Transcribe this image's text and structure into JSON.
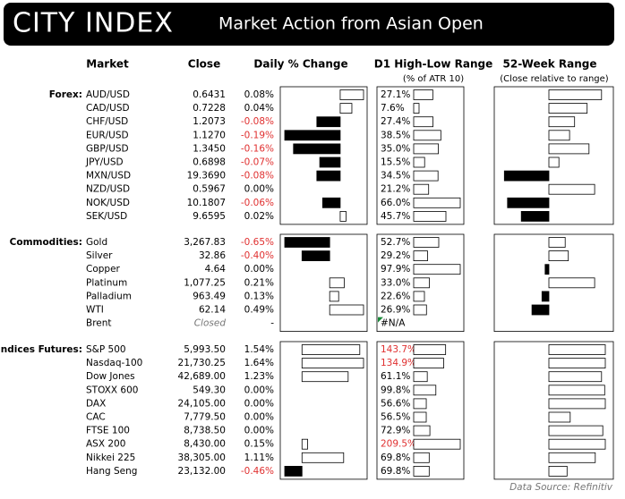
{
  "header": {
    "logo": "CITY INDEX",
    "title": "Market Action from Asian Open"
  },
  "columns": {
    "market": "Market",
    "close": "Close",
    "change": "Daily % Change",
    "range": "D1 High-Low Range",
    "range_note": "(% of ATR 10)",
    "week52": "52-Week Range",
    "week52_note": "(Close relative to range)"
  },
  "sections": [
    {
      "label": "Forex:",
      "rows": [
        {
          "market": "AUD/USD",
          "close": "0.6431",
          "change": {
            "value": 0.08,
            "label": "0.08%"
          },
          "range": {
            "value": 27.1,
            "label": "27.1%"
          },
          "week52": 84
        },
        {
          "market": "CAD/USD",
          "close": "0.7228",
          "change": {
            "value": 0.04,
            "label": "0.04%"
          },
          "range": {
            "value": 7.6,
            "label": "7.6%"
          },
          "week52": 61
        },
        {
          "market": "CHF/USD",
          "close": "1.2073",
          "change": {
            "value": -0.08,
            "label": "-0.08%"
          },
          "range": {
            "value": 27.4,
            "label": "27.4%"
          },
          "week52": 41
        },
        {
          "market": "EUR/USD",
          "close": "1.1270",
          "change": {
            "value": -0.19,
            "label": "-0.19%"
          },
          "range": {
            "value": 38.5,
            "label": "38.5%"
          },
          "week52": 33
        },
        {
          "market": "GBP/USD",
          "close": "1.3450",
          "change": {
            "value": -0.16,
            "label": "-0.16%"
          },
          "range": {
            "value": 35.0,
            "label": "35.0%"
          },
          "week52": 64
        },
        {
          "market": "JPY/USD",
          "close": "0.6898",
          "change": {
            "value": -0.07,
            "label": "-0.07%"
          },
          "range": {
            "value": 15.5,
            "label": "15.5%"
          },
          "week52": 16
        },
        {
          "market": "MXN/USD",
          "close": "19.3690",
          "change": {
            "value": -0.08,
            "label": "-0.08%"
          },
          "range": {
            "value": 34.5,
            "label": "34.5%"
          },
          "week52": -71
        },
        {
          "market": "NZD/USD",
          "close": "0.5967",
          "change": {
            "value": 0.0,
            "label": "0.00%"
          },
          "range": {
            "value": 21.2,
            "label": "21.2%"
          },
          "week52": 73
        },
        {
          "market": "NOK/USD",
          "close": "10.1807",
          "change": {
            "value": -0.06,
            "label": "-0.06%"
          },
          "range": {
            "value": 66.0,
            "label": "66.0%"
          },
          "week52": -66
        },
        {
          "market": "SEK/USD",
          "close": "9.6595",
          "change": {
            "value": 0.02,
            "label": "0.02%"
          },
          "range": {
            "value": 45.7,
            "label": "45.7%"
          },
          "week52": -44
        }
      ]
    },
    {
      "label": "Commodities:",
      "rows": [
        {
          "market": "Gold",
          "close": "3,267.83",
          "change": {
            "value": -0.65,
            "label": "-0.65%"
          },
          "range": {
            "value": 52.7,
            "label": "52.7%"
          },
          "week52": 26
        },
        {
          "market": "Silver",
          "close": "32.86",
          "change": {
            "value": -0.4,
            "label": "-0.40%"
          },
          "range": {
            "value": 29.2,
            "label": "29.2%"
          },
          "week52": 31
        },
        {
          "market": "Copper",
          "close": "4.64",
          "change": {
            "value": 0.0,
            "label": "0.00%"
          },
          "range": {
            "value": 97.9,
            "label": "97.9%"
          },
          "week52": -6
        },
        {
          "market": "Platinum",
          "close": "1,077.25",
          "change": {
            "value": 0.21,
            "label": "0.21%"
          },
          "range": {
            "value": 33.0,
            "label": "33.0%"
          },
          "week52": 73
        },
        {
          "market": "Palladium",
          "close": "963.49",
          "change": {
            "value": 0.13,
            "label": "0.13%"
          },
          "range": {
            "value": 22.6,
            "label": "22.6%"
          },
          "week52": -11
        },
        {
          "market": "WTI",
          "close": "62.14",
          "change": {
            "value": 0.49,
            "label": "0.49%"
          },
          "range": {
            "value": 26.9,
            "label": "26.9%"
          },
          "week52": -27
        },
        {
          "market": "Brent",
          "close": "Closed",
          "change": "-",
          "range": "#N/A",
          "week52": null
        }
      ]
    },
    {
      "label": "Indices Futures:",
      "rows": [
        {
          "market": "S&P 500",
          "close": "5,993.50",
          "change": {
            "value": 1.54,
            "label": "1.54%"
          },
          "range": {
            "value": 143.7,
            "label": "143.7%"
          },
          "week52": 90
        },
        {
          "market": "Nasdaq-100",
          "close": "21,730.25",
          "change": {
            "value": 1.64,
            "label": "1.64%"
          },
          "range": {
            "value": 134.9,
            "label": "134.9%"
          },
          "week52": 90
        },
        {
          "market": "Dow Jones",
          "close": "42,689.00",
          "change": {
            "value": 1.23,
            "label": "1.23%"
          },
          "range": {
            "value": 61.1,
            "label": "61.1%"
          },
          "week52": 84
        },
        {
          "market": "STOXX 600",
          "close": "549.30",
          "change": {
            "value": 0.0,
            "label": "0.00%"
          },
          "range": {
            "value": 99.8,
            "label": "99.8%"
          },
          "week52": 89
        },
        {
          "market": "DAX",
          "close": "24,105.00",
          "change": {
            "value": 0.0,
            "label": "0.00%"
          },
          "range": {
            "value": 56.6,
            "label": "56.6%"
          },
          "week52": 90
        },
        {
          "market": "CAC",
          "close": "7,779.50",
          "change": {
            "value": 0.0,
            "label": "0.00%"
          },
          "range": {
            "value": 56.5,
            "label": "56.5%"
          },
          "week52": 34
        },
        {
          "market": "FTSE 100",
          "close": "8,738.50",
          "change": {
            "value": 0.0,
            "label": "0.00%"
          },
          "range": {
            "value": 72.9,
            "label": "72.9%"
          },
          "week52": 86
        },
        {
          "market": "ASX 200",
          "close": "8,430.00",
          "change": {
            "value": 0.15,
            "label": "0.15%"
          },
          "range": {
            "value": 209.5,
            "label": "209.5%"
          },
          "week52": 90
        },
        {
          "market": "Nikkei 225",
          "close": "38,305.00",
          "change": {
            "value": 1.11,
            "label": "1.11%"
          },
          "range": {
            "value": 69.8,
            "label": "69.8%"
          },
          "week52": 74
        },
        {
          "market": "Hang Seng",
          "close": "23,132.00",
          "change": {
            "value": -0.46,
            "label": "-0.46%"
          },
          "range": {
            "value": 69.8,
            "label": "69.8%"
          },
          "week52": 29
        }
      ]
    }
  ],
  "footer": "Data Source: Refinitiv"
}
